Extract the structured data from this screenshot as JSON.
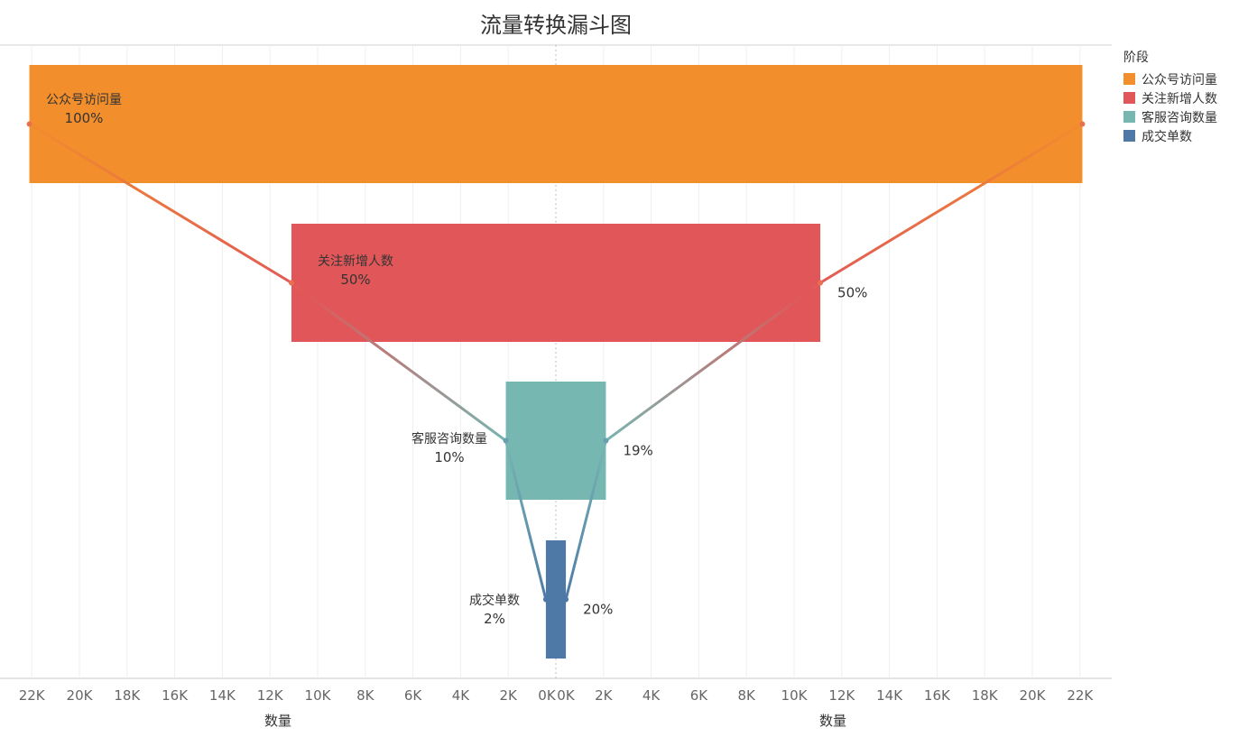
{
  "title": "流量转换漏斗图",
  "legend": {
    "title": "阶段",
    "items": [
      {
        "label": "公众号访问量",
        "color": "#F28E2B"
      },
      {
        "label": "关注新增人数",
        "color": "#E15759"
      },
      {
        "label": "客服咨询数量",
        "color": "#76B7B2"
      },
      {
        "label": "成交单数",
        "color": "#4E79A7"
      }
    ]
  },
  "chart_data": {
    "type": "bar",
    "subtype": "funnel",
    "title": "流量转换漏斗图",
    "categories": [
      "公众号访问量",
      "关注新增人数",
      "客服咨询数量",
      "成交单数"
    ],
    "values": [
      22100,
      11100,
      2100,
      420
    ],
    "pct_of_first": [
      "100%",
      "50%",
      "10%",
      "2%"
    ],
    "pct_of_previous": [
      "",
      "50%",
      "19%",
      "20%"
    ],
    "xlabel_left": "数量",
    "xlabel_right": "数量",
    "xlim": [
      0,
      22000
    ],
    "ticks_left": [
      "22K",
      "20K",
      "18K",
      "16K",
      "14K",
      "12K",
      "10K",
      "8K",
      "6K",
      "4K",
      "2K",
      "0K"
    ],
    "ticks_right": [
      "0K",
      "2K",
      "4K",
      "6K",
      "8K",
      "10K",
      "12K",
      "14K",
      "16K",
      "18K",
      "20K",
      "22K"
    ],
    "grid": true,
    "legend_position": "right"
  }
}
